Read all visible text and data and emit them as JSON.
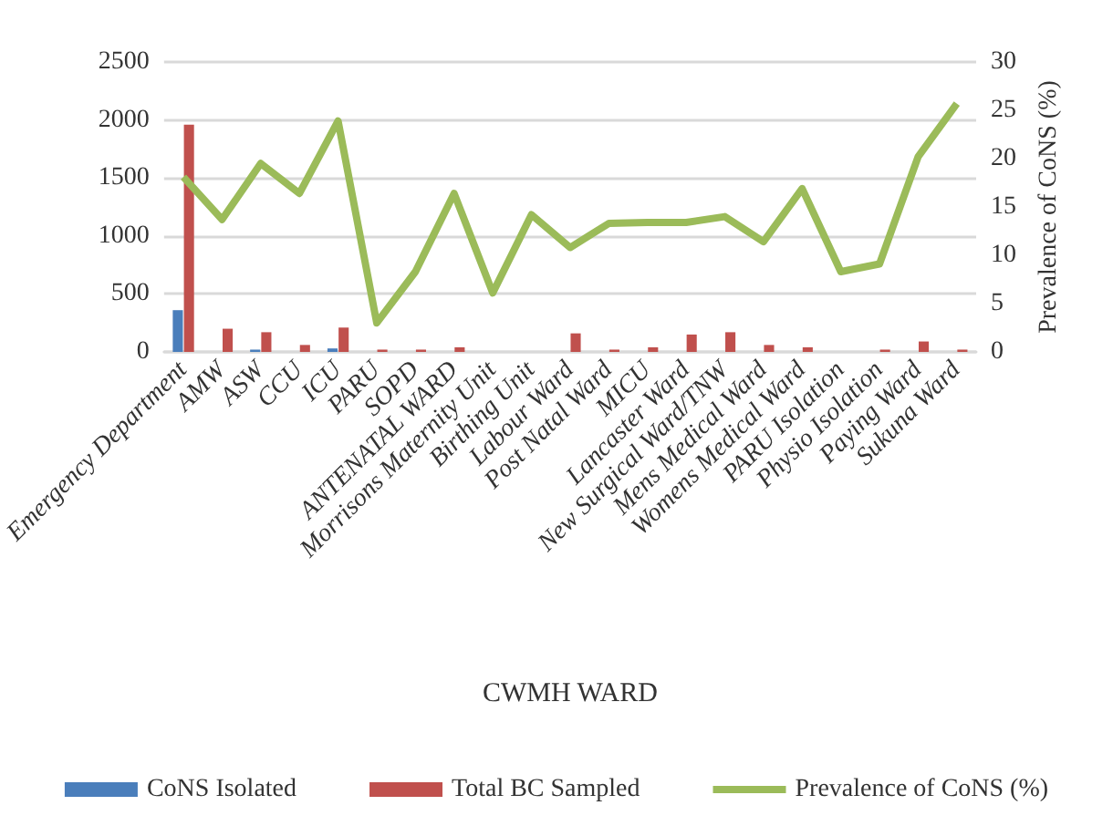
{
  "chart_data": {
    "type": "bar",
    "xlabel": "CWMH WARD",
    "y2label": "Prevalence of CoNS (%)",
    "categories": [
      "Emergency Department",
      "AMW",
      "ASW",
      "CCU",
      "ICU",
      "PARU",
      "SOPD",
      "ANTENATAL WARD",
      "Morrisons Maternity Unit",
      "Birthing Unit",
      "Labour Ward",
      "Post Natal Ward",
      "MICU",
      "Lancaster Ward",
      "New Surgical Ward/TNW",
      "Mens Medical Ward",
      "Womens Medical Ward",
      "PARU Isolation",
      "Physio Isolation",
      "Paying Ward",
      "Sukuna Ward"
    ],
    "series": [
      {
        "name": "CoNS Isolated",
        "color": "#4a7ebb",
        "values": [
          360,
          0,
          20,
          0,
          30,
          0,
          0,
          0,
          0,
          0,
          0,
          0,
          0,
          0,
          0,
          0,
          0,
          0,
          0,
          0,
          0
        ]
      },
      {
        "name": "Total BC Sampled",
        "color": "#c0504d",
        "values": [
          1960,
          200,
          170,
          60,
          210,
          20,
          20,
          40,
          0,
          0,
          160,
          20,
          40,
          150,
          170,
          60,
          40,
          0,
          20,
          90,
          20
        ]
      },
      {
        "name": "Prevalence of CoNS (%)",
        "type": "line",
        "axis": "y2",
        "color": "#9bbb59",
        "values": [
          18.1,
          13.7,
          19.5,
          16.4,
          23.9,
          3.0,
          8.3,
          16.4,
          6.1,
          14.2,
          10.8,
          13.3,
          13.4,
          13.4,
          14.0,
          11.4,
          16.9,
          8.3,
          9.1,
          20.2,
          25.7
        ]
      }
    ],
    "ylim": [
      0,
      2500
    ],
    "yticks": [
      0,
      500,
      1000,
      1500,
      2000,
      2500
    ],
    "y2lim": [
      0,
      30
    ],
    "y2ticks": [
      0,
      5,
      10,
      15,
      20,
      25,
      30
    ],
    "grid": "y",
    "legend": "bottom",
    "marker": "none"
  }
}
